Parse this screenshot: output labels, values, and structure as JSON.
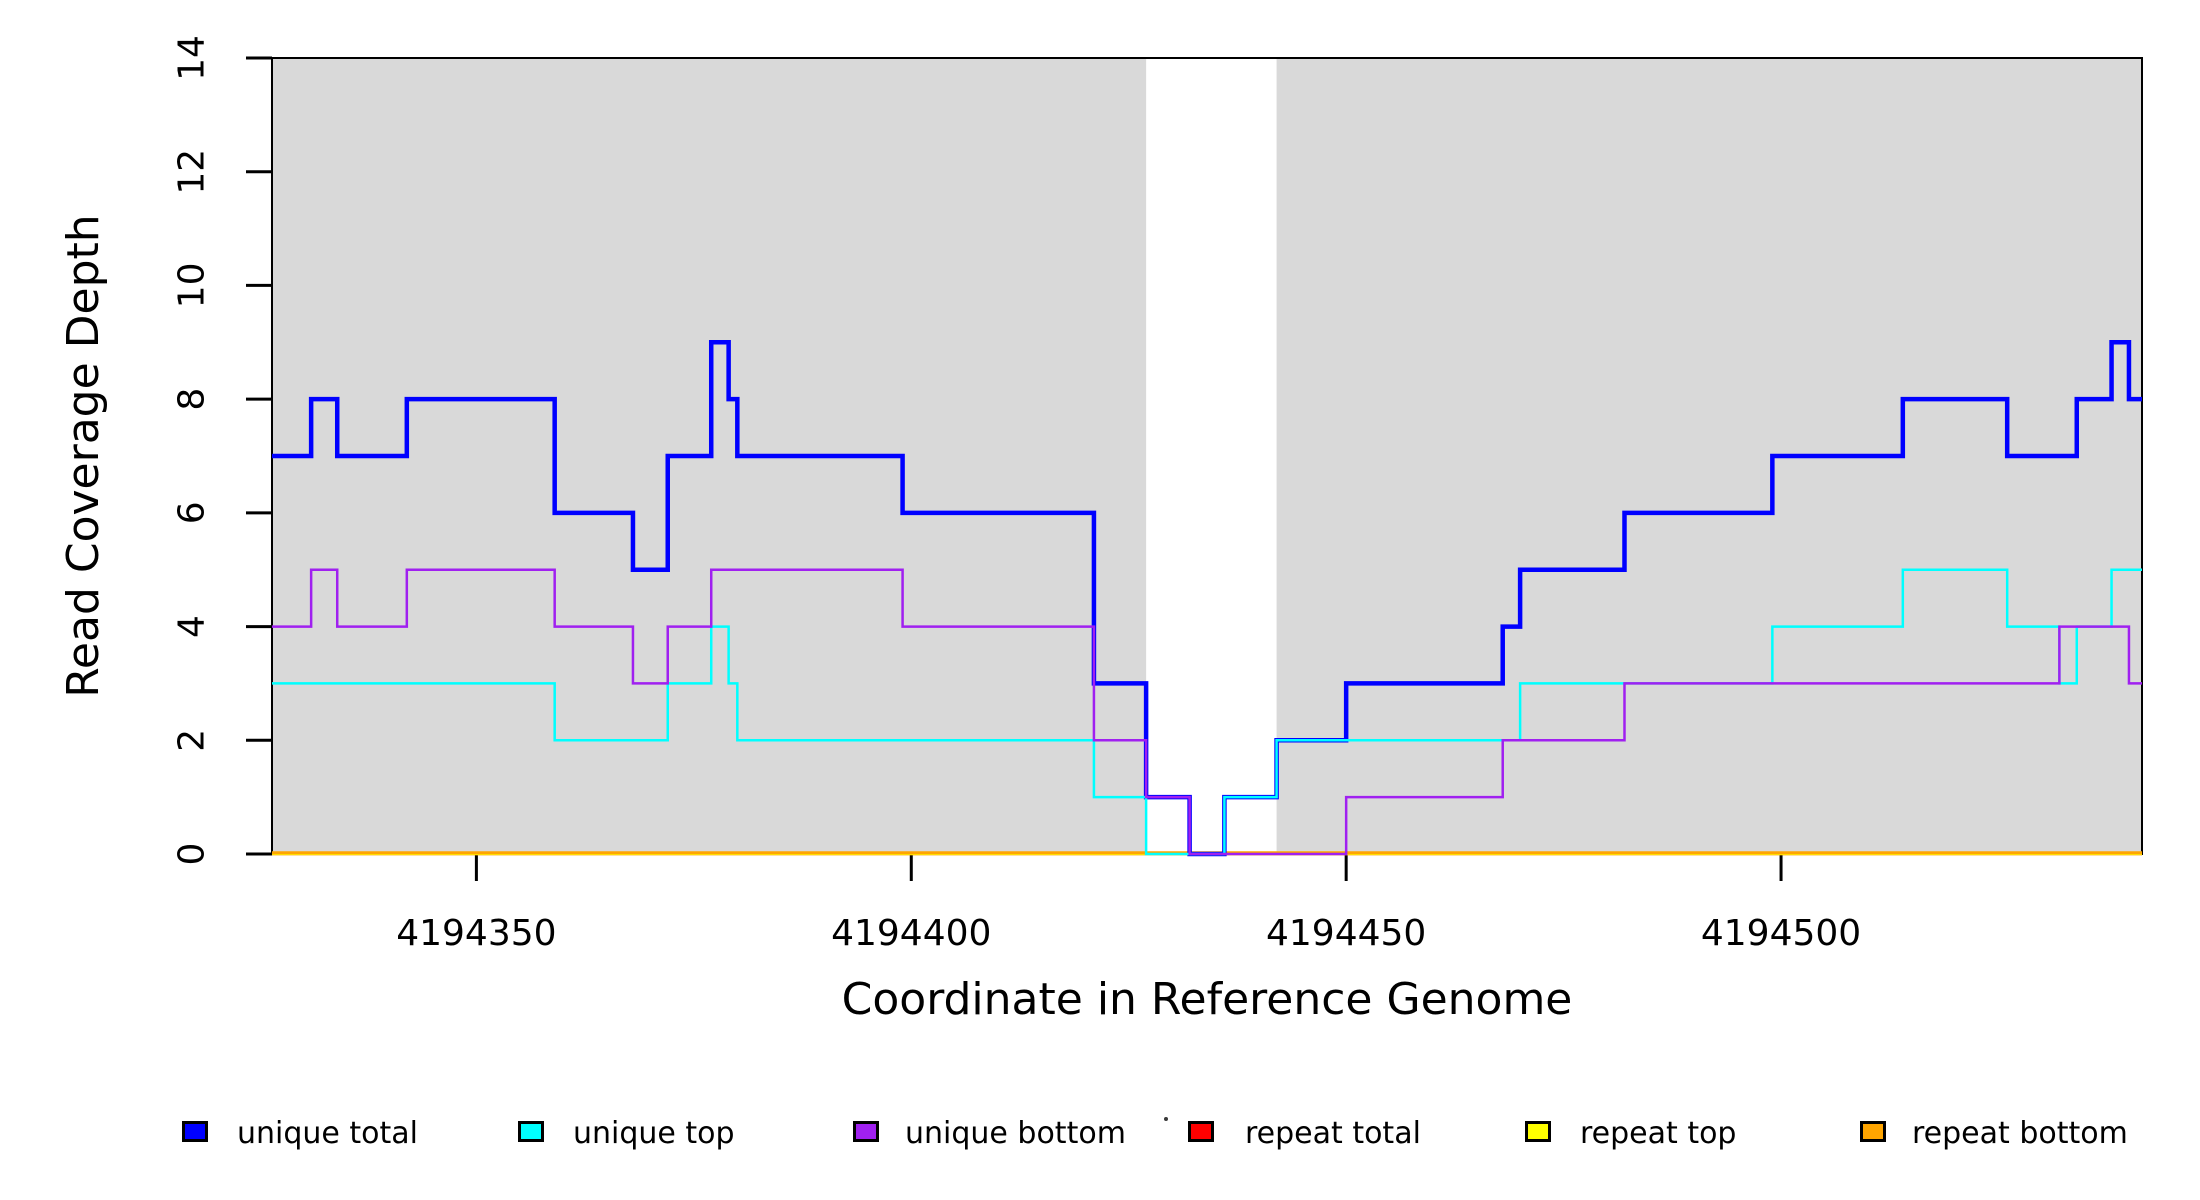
{
  "figure": {
    "background_color": "#FFFFFF",
    "shading_color": "#D9D9D9",
    "axis_color": "#000000"
  },
  "chart_data": {
    "type": "line",
    "subtype": "step-post",
    "title": "",
    "xlabel": "Coordinate in Reference Genome",
    "ylabel": "Read Coverage Depth",
    "xlim": [
      4194326.5,
      4194541.5
    ],
    "ylim": [
      0,
      14
    ],
    "x_ticks": [
      4194350,
      4194400,
      4194450,
      4194500
    ],
    "y_ticks": [
      0,
      2,
      4,
      6,
      8,
      10,
      12,
      14
    ],
    "grid": false,
    "legend_position": "bottom",
    "plot_shading": {
      "color": "#D9D9D9",
      "shaded_x_ranges": [
        [
          4194326.5,
          4194427
        ],
        [
          4194442,
          4194541.5
        ]
      ],
      "white_gap_x_range": [
        4194427,
        4194442
      ]
    },
    "series": [
      {
        "name": "unique total",
        "color": "#0000FF",
        "line_width": 4.5,
        "points": [
          [
            4194326.5,
            7
          ],
          [
            4194331,
            8
          ],
          [
            4194334,
            7
          ],
          [
            4194342,
            8
          ],
          [
            4194359,
            6
          ],
          [
            4194368,
            5
          ],
          [
            4194372,
            7
          ],
          [
            4194377,
            9
          ],
          [
            4194379,
            8
          ],
          [
            4194380,
            7
          ],
          [
            4194399,
            6
          ],
          [
            4194421,
            3
          ],
          [
            4194427,
            1
          ],
          [
            4194432,
            0
          ],
          [
            4194436,
            1
          ],
          [
            4194442,
            2
          ],
          [
            4194450,
            3
          ],
          [
            4194468,
            4
          ],
          [
            4194470,
            5
          ],
          [
            4194482,
            6
          ],
          [
            4194499,
            7
          ],
          [
            4194514,
            8
          ],
          [
            4194526,
            7
          ],
          [
            4194534,
            8
          ],
          [
            4194538,
            9
          ],
          [
            4194540,
            8
          ],
          [
            4194541.5,
            8
          ]
        ]
      },
      {
        "name": "unique top",
        "color": "#00FFFF",
        "line_width": 2.5,
        "points": [
          [
            4194326.5,
            3
          ],
          [
            4194359,
            2
          ],
          [
            4194372,
            3
          ],
          [
            4194377,
            4
          ],
          [
            4194379,
            3
          ],
          [
            4194380,
            2
          ],
          [
            4194421,
            1
          ],
          [
            4194427,
            0
          ],
          [
            4194436,
            1
          ],
          [
            4194442,
            2
          ],
          [
            4194470,
            3
          ],
          [
            4194499,
            4
          ],
          [
            4194514,
            5
          ],
          [
            4194526,
            4
          ],
          [
            4194532,
            3
          ],
          [
            4194534,
            4
          ],
          [
            4194538,
            5
          ],
          [
            4194541.5,
            5
          ]
        ]
      },
      {
        "name": "unique bottom",
        "color": "#A020F0",
        "line_width": 2.5,
        "points": [
          [
            4194326.5,
            4
          ],
          [
            4194331,
            5
          ],
          [
            4194334,
            4
          ],
          [
            4194342,
            5
          ],
          [
            4194359,
            4
          ],
          [
            4194368,
            3
          ],
          [
            4194372,
            4
          ],
          [
            4194377,
            5
          ],
          [
            4194399,
            4
          ],
          [
            4194421,
            2
          ],
          [
            4194427,
            1
          ],
          [
            4194432,
            0
          ],
          [
            4194450,
            1
          ],
          [
            4194468,
            2
          ],
          [
            4194482,
            3
          ],
          [
            4194532,
            4
          ],
          [
            4194540,
            3
          ],
          [
            4194541.5,
            3
          ]
        ]
      },
      {
        "name": "repeat total",
        "color": "#FF0000",
        "line_width": 2.5,
        "points": [
          [
            4194326.5,
            0
          ],
          [
            4194541.5,
            0
          ]
        ]
      },
      {
        "name": "repeat top",
        "color": "#FFFF00",
        "line_width": 2.5,
        "points": [
          [
            4194326.5,
            0
          ],
          [
            4194541.5,
            0
          ]
        ]
      },
      {
        "name": "repeat bottom",
        "color": "#FFA500",
        "line_width": 3.2,
        "points": [
          [
            4194326.5,
            0
          ],
          [
            4194541.5,
            0
          ]
        ]
      }
    ],
    "legend": {
      "entries": [
        {
          "label": "unique total",
          "color": "#0000FF"
        },
        {
          "label": "unique top",
          "color": "#00FFFF"
        },
        {
          "label": "unique bottom",
          "color": "#A020F0"
        },
        {
          "label": "repeat total",
          "color": "#FF0000"
        },
        {
          "label": "repeat top",
          "color": "#FFFF00"
        },
        {
          "label": "repeat bottom",
          "color": "#FFA500"
        }
      ]
    }
  }
}
